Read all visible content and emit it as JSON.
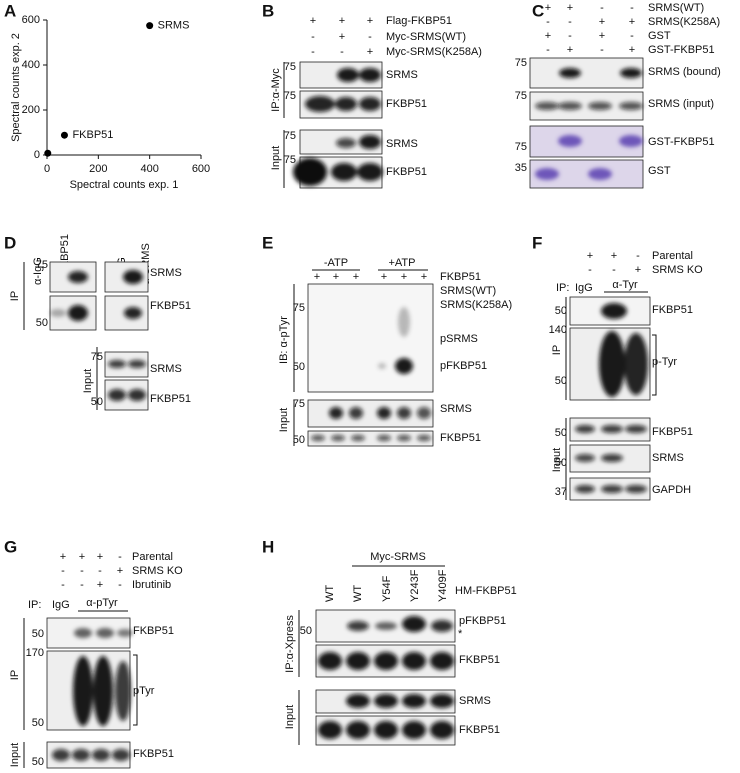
{
  "letters": [
    "A",
    "B",
    "C",
    "D",
    "E",
    "F",
    "G",
    "H"
  ],
  "chart_data": {
    "type": "scatter",
    "xlabel": "Spectral counts exp. 1",
    "ylabel": "Spectral counts exp. 2",
    "x": [
      400,
      68,
      3
    ],
    "values": [
      575,
      88,
      8
    ],
    "point_labels": [
      "SRMS",
      "FKBP51",
      null
    ],
    "color": "#000000",
    "xlim": [
      0,
      600
    ],
    "ylim": [
      0,
      600
    ],
    "xticks": [
      0,
      200,
      400,
      600
    ],
    "yticks": [
      0,
      200,
      400,
      600
    ]
  },
  "B": {
    "rows": [
      {
        "label": "Flag-FKBP51",
        "signs": [
          "+",
          "+",
          "+"
        ]
      },
      {
        "label": "Myc-SRMS(WT)",
        "signs": [
          "-",
          "+",
          "-"
        ]
      },
      {
        "label": "Myc-SRMS(K258A)",
        "signs": [
          "-",
          "-",
          "+"
        ]
      }
    ],
    "side_labels": [
      "IP:α-Myc",
      "Input"
    ],
    "markers": [
      "75",
      "75",
      "75",
      "75"
    ],
    "bands": [
      "SRMS",
      "FKBP51",
      "SRMS",
      "FKBP51"
    ]
  },
  "C": {
    "rows": [
      {
        "label": "SRMS(WT)",
        "signs": [
          "+",
          "+",
          "-",
          "-"
        ]
      },
      {
        "label": "SRMS(K258A)",
        "signs": [
          "-",
          "-",
          "+",
          "+"
        ]
      },
      {
        "label": "GST",
        "signs": [
          "+",
          "-",
          "+",
          "-"
        ]
      },
      {
        "label": "GST-FKBP51",
        "signs": [
          "-",
          "+",
          "-",
          "+"
        ]
      }
    ],
    "markers": [
      "75",
      "75",
      "75",
      "35"
    ],
    "bands": [
      "SRMS (bound)",
      "SRMS (input)",
      "GST-FKBP51",
      "GST"
    ]
  },
  "D": {
    "antibodies": [
      "α-IgG",
      "α-FKBP51",
      "α-IgG",
      "α-SRMS"
    ],
    "side_labels": [
      "IP",
      "Input"
    ],
    "markers": [
      "75",
      "50",
      "75",
      "50"
    ],
    "bands": [
      "SRMS",
      "FKBP51",
      "SRMS",
      "FKBP51"
    ]
  },
  "E": {
    "groups": [
      "-ATP",
      "+ATP"
    ],
    "rows": [
      {
        "label": "FKBP51",
        "signs": [
          "+",
          "+",
          "+",
          "+",
          "+",
          "+"
        ]
      },
      {
        "label": "SRMS(WT)",
        "signs": [
          "-",
          "+",
          "-",
          "-",
          "+",
          "-"
        ]
      },
      {
        "label": "SRMS(K258A)",
        "signs": [
          "-",
          "-",
          "+",
          "-",
          "-",
          "+"
        ]
      }
    ],
    "side_labels": [
      "IB: α-pTyr",
      "Input"
    ],
    "markers": [
      "75",
      "50",
      "75",
      "50"
    ],
    "bands": [
      "pSRMS",
      "pFKBP51",
      "SRMS",
      "FKBP51"
    ]
  },
  "F": {
    "rows": [
      {
        "label": "Parental",
        "signs": [
          "+",
          "+",
          "-"
        ]
      },
      {
        "label": "SRMS KO",
        "signs": [
          "-",
          "-",
          "+"
        ]
      }
    ],
    "ip": "IP:",
    "lanes": [
      "IgG",
      "α-Tyr"
    ],
    "side_labels": [
      "IP",
      "Input"
    ],
    "markers": [
      "50",
      "140",
      "50",
      "50",
      "50",
      "37"
    ],
    "bands": [
      "FKBP51",
      "p-Tyr",
      "FKBP51",
      "SRMS",
      "GAPDH"
    ]
  },
  "G": {
    "rows": [
      {
        "label": "Parental",
        "signs": [
          "+",
          "+",
          "+",
          "-"
        ]
      },
      {
        "label": "SRMS KO",
        "signs": [
          "-",
          "-",
          "-",
          "+"
        ]
      },
      {
        "label": "Ibrutinib",
        "signs": [
          "-",
          "-",
          "+",
          "-"
        ]
      }
    ],
    "ip": "IP:",
    "lanes": [
      "IgG",
      "α-pTyr"
    ],
    "side_labels": [
      "IP",
      "Input"
    ],
    "markers": [
      "50",
      "170",
      "50",
      "50"
    ],
    "bands": [
      "FKBP51",
      "pTyr",
      "FKBP51"
    ]
  },
  "H": {
    "group": "Myc-SRMS",
    "lanes": [
      "WT",
      "WT",
      "Y54F",
      "Y243F",
      "Y409F"
    ],
    "row_label": "HM-FKBP51",
    "side_labels": [
      "IP:α-Xpress",
      "Input"
    ],
    "markers": [
      "50"
    ],
    "bands": [
      "pFKBP51",
      "*",
      "FKBP51",
      "SRMS",
      "FKBP51"
    ]
  }
}
